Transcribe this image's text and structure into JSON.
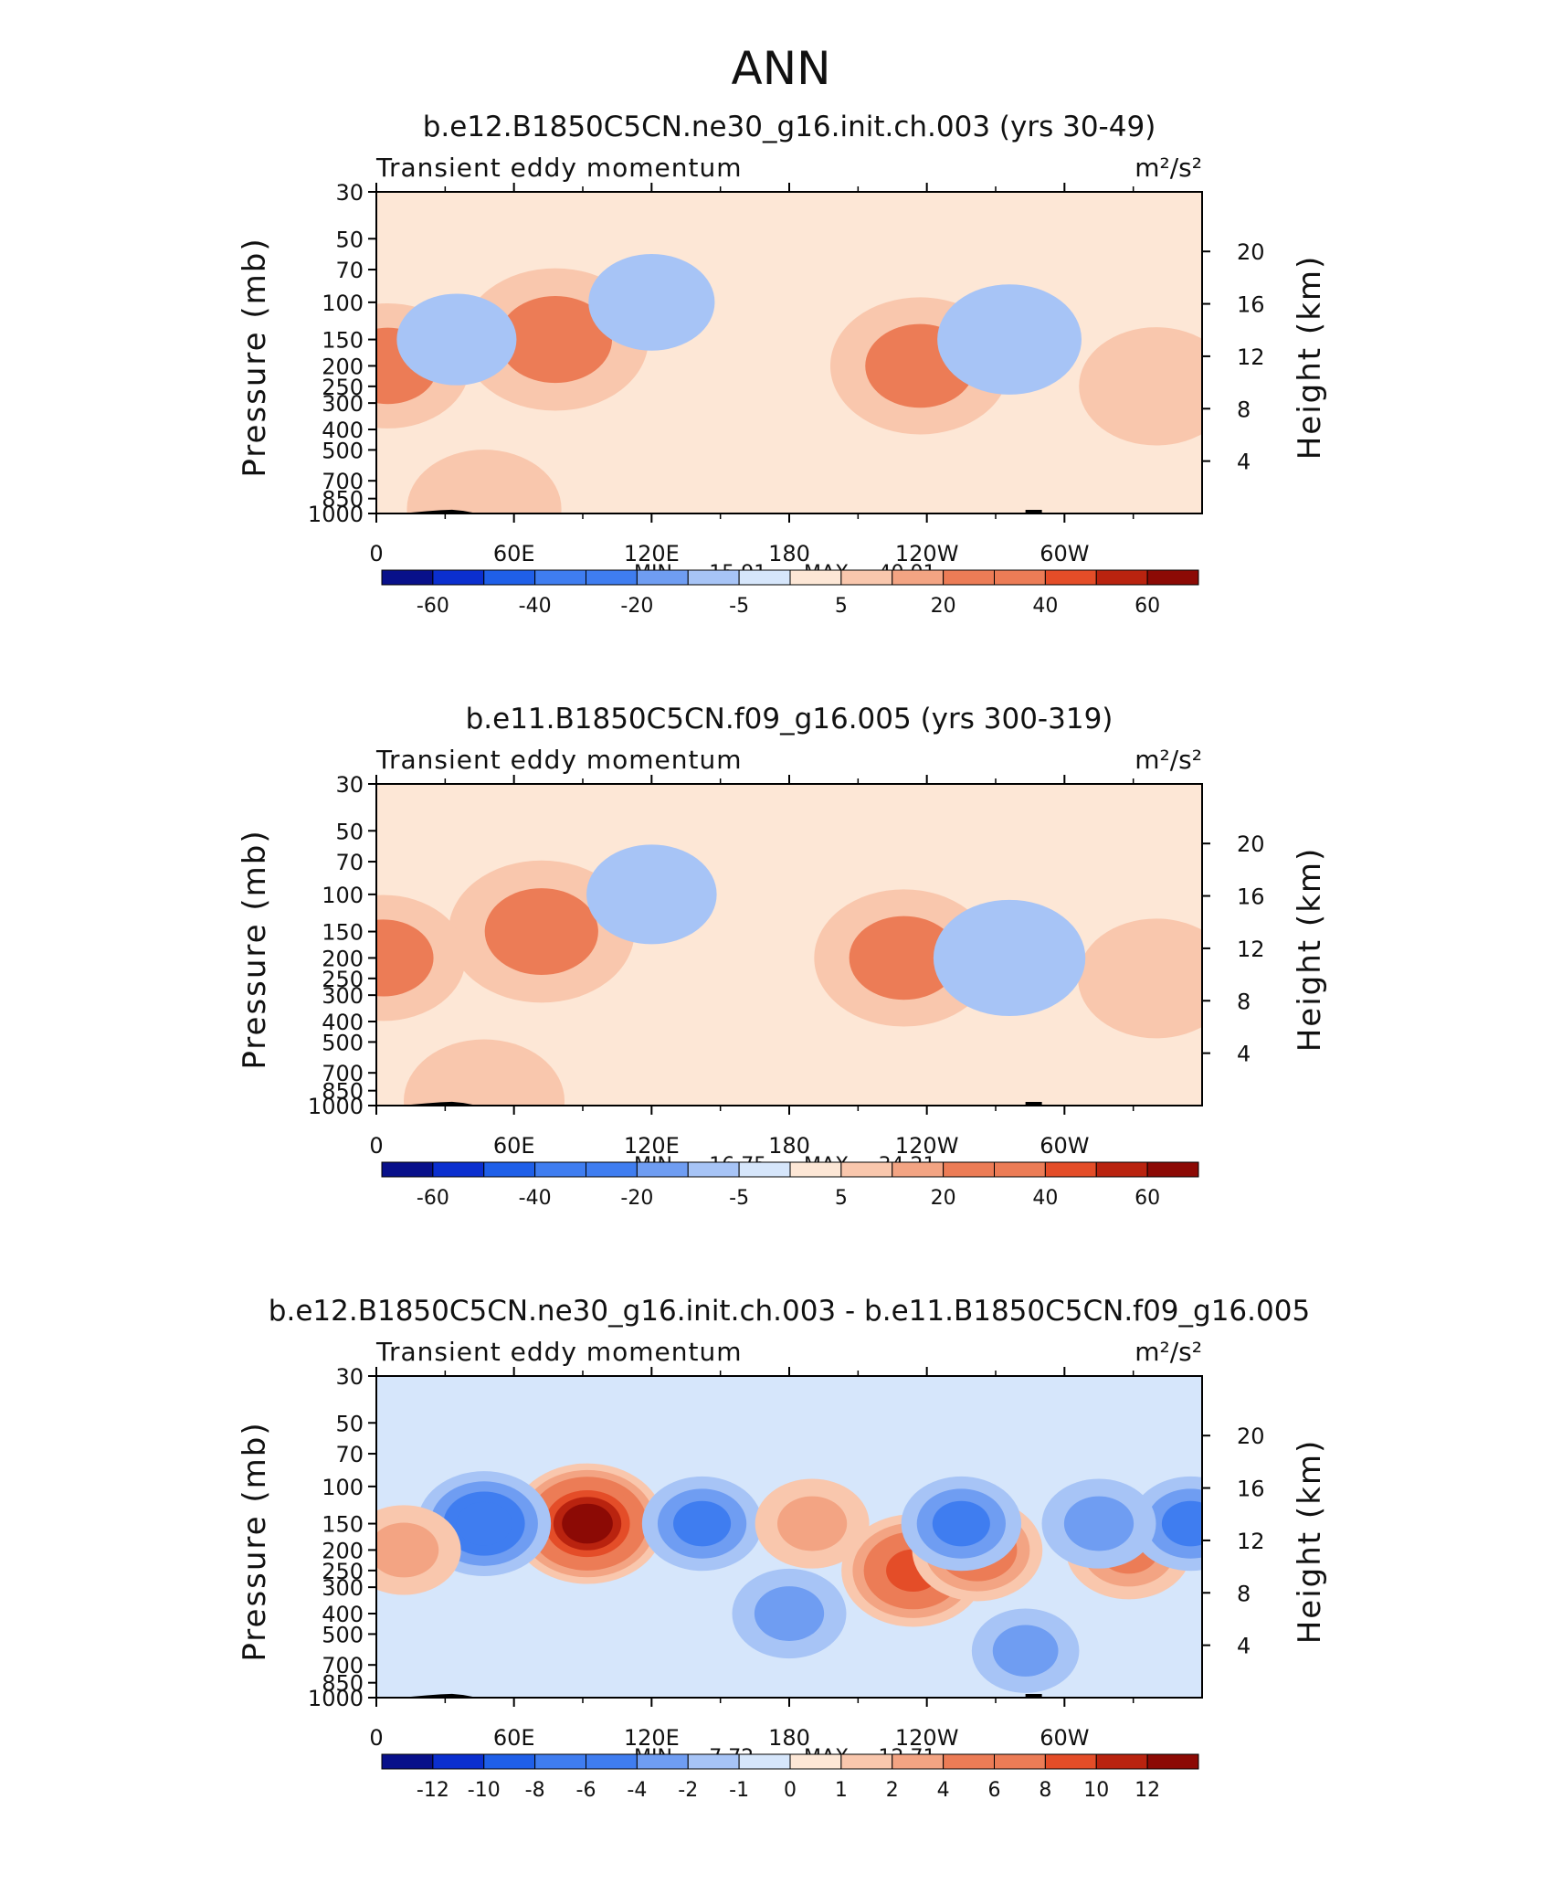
{
  "page": {
    "title": "ANN"
  },
  "colors": {
    "neg": [
      "#08108a",
      "#0b2fcf",
      "#1f5fe8",
      "#3f7df0",
      "#6f9df2",
      "#a7c4f6",
      "#d6e6fb"
    ],
    "pos": [
      "#fde7d6",
      "#f9c7ad",
      "#f3a483",
      "#ec7c56",
      "#e44d28",
      "#b9230f",
      "#8c0a05"
    ]
  },
  "chart_data": [
    {
      "type": "heatmap",
      "title": "b.e12.B1850C5CN.ne30_g16.init.ch.003 (yrs 30-49)",
      "left_label": "Transient eddy momentum",
      "right_label": "m²/s²",
      "ylabel": "Pressure (mb)",
      "y2label": "Height (km)",
      "x_ticks": [
        "0",
        "60E",
        "120E",
        "180",
        "120W",
        "60W"
      ],
      "y_ticks": [
        "30",
        "50",
        "70",
        "100",
        "150",
        "200",
        "250",
        "300",
        "400",
        "500",
        "700",
        "850",
        "1000"
      ],
      "y2_ticks": [
        "20",
        "16",
        "12",
        "8",
        "4"
      ],
      "min_label": "MIN = -15.91",
      "max_label": "MAX = 40.01",
      "min": -15.91,
      "max": 40.01,
      "colorbar_labels": [
        "-60",
        "-40",
        "-20",
        "-5",
        "5",
        "20",
        "40",
        "60"
      ],
      "features": [
        {
          "lon": 78,
          "p": 150,
          "value": 40
        },
        {
          "lon": 237,
          "p": 200,
          "value": 35
        },
        {
          "lon": 5,
          "p": 200,
          "value": 25
        },
        {
          "lon": 340,
          "p": 250,
          "value": 20
        },
        {
          "lon": 276,
          "p": 150,
          "value": -15
        },
        {
          "lon": 120,
          "p": 100,
          "value": -8
        },
        {
          "lon": 35,
          "p": 150,
          "value": -6
        },
        {
          "lon": 47,
          "p": 950,
          "value": 20
        }
      ]
    },
    {
      "type": "heatmap",
      "title": "b.e11.B1850C5CN.f09_g16.005 (yrs 300-319)",
      "left_label": "Transient eddy momentum",
      "right_label": "m²/s²",
      "ylabel": "Pressure (mb)",
      "y2label": "Height (km)",
      "x_ticks": [
        "0",
        "60E",
        "120E",
        "180",
        "120W",
        "60W"
      ],
      "y_ticks": [
        "30",
        "50",
        "70",
        "100",
        "150",
        "200",
        "250",
        "300",
        "400",
        "500",
        "700",
        "850",
        "1000"
      ],
      "y2_ticks": [
        "20",
        "16",
        "12",
        "8",
        "4"
      ],
      "min_label": "MIN = -16.75",
      "max_label": "MAX = 34.21",
      "min": -16.75,
      "max": 34.21,
      "colorbar_labels": [
        "-60",
        "-40",
        "-20",
        "-5",
        "5",
        "20",
        "40",
        "60"
      ],
      "features": [
        {
          "lon": 72,
          "p": 150,
          "value": 34
        },
        {
          "lon": 230,
          "p": 200,
          "value": 30
        },
        {
          "lon": 3,
          "p": 200,
          "value": 22
        },
        {
          "lon": 340,
          "p": 250,
          "value": 18
        },
        {
          "lon": 276,
          "p": 200,
          "value": -16
        },
        {
          "lon": 120,
          "p": 100,
          "value": -8
        },
        {
          "lon": 47,
          "p": 950,
          "value": 20
        }
      ]
    },
    {
      "type": "heatmap",
      "title": "b.e12.B1850C5CN.ne30_g16.init.ch.003 - b.e11.B1850C5CN.f09_g16.005",
      "left_label": "Transient eddy momentum",
      "right_label": "m²/s²",
      "ylabel": "Pressure (mb)",
      "y2label": "Height (km)",
      "x_ticks": [
        "0",
        "60E",
        "120E",
        "180",
        "120W",
        "60W"
      ],
      "y_ticks": [
        "30",
        "50",
        "70",
        "100",
        "150",
        "200",
        "250",
        "300",
        "400",
        "500",
        "700",
        "850",
        "1000"
      ],
      "y2_ticks": [
        "20",
        "16",
        "12",
        "8",
        "4"
      ],
      "min_label": "MIN = -7.72",
      "max_label": "MAX = 12.71",
      "min": -7.72,
      "max": 12.71,
      "colorbar_labels": [
        "-12",
        "-10",
        "-8",
        "-6",
        "-4",
        "-2",
        "-1",
        "0",
        "1",
        "2",
        "4",
        "6",
        "8",
        "10",
        "12"
      ],
      "features": [
        {
          "lon": 92,
          "p": 150,
          "value": 12.7
        },
        {
          "lon": 234,
          "p": 250,
          "value": 10
        },
        {
          "lon": 262,
          "p": 200,
          "value": 7
        },
        {
          "lon": 328,
          "p": 200,
          "value": 6
        },
        {
          "lon": 12,
          "p": 200,
          "value": 4
        },
        {
          "lon": 190,
          "p": 150,
          "value": 4
        },
        {
          "lon": 47,
          "p": 150,
          "value": -7.7
        },
        {
          "lon": 142,
          "p": 150,
          "value": -5
        },
        {
          "lon": 255,
          "p": 150,
          "value": -5
        },
        {
          "lon": 180,
          "p": 400,
          "value": -4
        },
        {
          "lon": 315,
          "p": 150,
          "value": -4
        },
        {
          "lon": 355,
          "p": 150,
          "value": -5
        },
        {
          "lon": 283,
          "p": 600,
          "value": -3
        }
      ]
    }
  ]
}
